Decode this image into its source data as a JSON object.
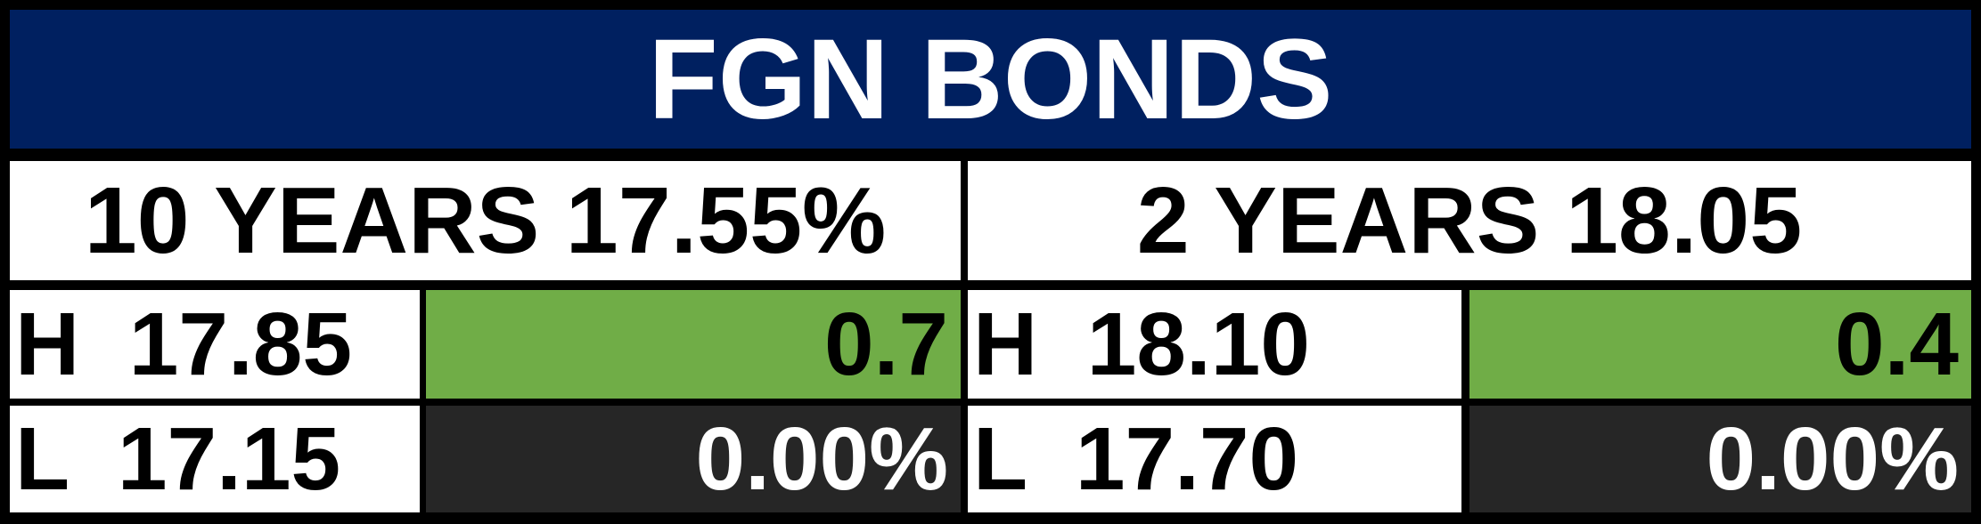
{
  "header": {
    "title": "FGN BONDS"
  },
  "table": {
    "columns": [
      "10 YEARS 17.55%",
      "2 YEARS 18.05"
    ],
    "rows": [
      [
        "H  17.85",
        "0.7",
        "H  18.10",
        "0.4"
      ],
      [
        "L  17.15",
        "0.00%",
        "L  17.70",
        "0.00%"
      ]
    ]
  }
}
